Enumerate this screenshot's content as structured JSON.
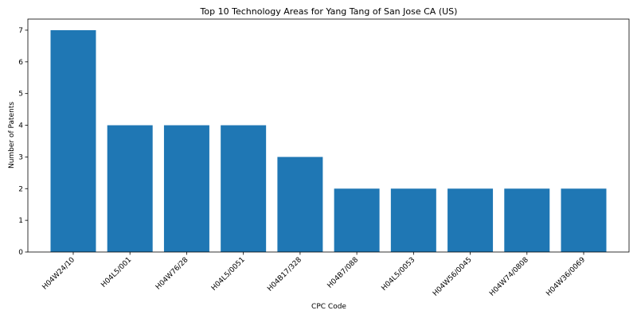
{
  "chart_data": {
    "type": "bar",
    "title": "Top 10 Technology Areas for Yang Tang of San Jose CA (US)",
    "xlabel": "CPC Code",
    "ylabel": "Number of Patents",
    "categories": [
      "H04W24/10",
      "H04L5/001",
      "H04W76/28",
      "H04L5/0051",
      "H04B17/328",
      "H04B7/088",
      "H04L5/0053",
      "H04W56/0045",
      "H04W74/0808",
      "H04W36/0069"
    ],
    "values": [
      7,
      4,
      4,
      4,
      3,
      2,
      2,
      2,
      2,
      2
    ],
    "ylim": [
      0,
      7.35
    ],
    "yticks": [
      0,
      1,
      2,
      3,
      4,
      5,
      6,
      7
    ],
    "bar_color": "#1f77b4",
    "grid": false,
    "legend": "none"
  }
}
